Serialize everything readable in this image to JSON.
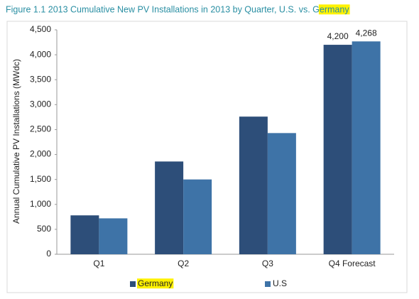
{
  "chart_data": {
    "type": "bar",
    "title": "Figure 1.1  2013 Cumulative New PV Installations in 2013 by Quarter, U.S. vs. Germany",
    "y_label": "Annual Cumulative PV Installations (MWdc)",
    "categories": [
      "Q1",
      "Q2",
      "Q3",
      "Q4 Forecast"
    ],
    "series": [
      {
        "name": "Germany",
        "color": "#2d4e79",
        "values": [
          780,
          1860,
          2760,
          4200
        ],
        "value_labels": [
          null,
          null,
          null,
          "4,200"
        ]
      },
      {
        "name": "U.S",
        "color": "#3e73a7",
        "values": [
          720,
          1500,
          2430,
          4268
        ],
        "value_labels": [
          null,
          null,
          null,
          "4,268"
        ]
      }
    ],
    "ylim": [
      0,
      4500
    ],
    "yticks": [
      0,
      500,
      {
        "value": 1000,
        "label": "1,000"
      },
      {
        "value": 1500,
        "label": "1,500"
      },
      {
        "value": 2000,
        "label": "2,000"
      },
      {
        "value": 2500,
        "label": "2,500"
      },
      {
        "value": 3000,
        "label": "3,000"
      },
      {
        "value": 3500,
        "label": "3,500"
      },
      {
        "value": 4000,
        "label": "4,000"
      },
      {
        "value": 4500,
        "label": "4,500"
      }
    ],
    "highlight": "Germany",
    "highlight_color": "#fff200"
  }
}
